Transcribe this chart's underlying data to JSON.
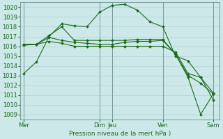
{
  "title": "Pression niveau de la mer( hPa )",
  "bg_color": "#cce8e8",
  "grid_color": "#aacccc",
  "line_color": "#1a6b1a",
  "ylim": [
    1008.5,
    1020.5
  ],
  "yticks": [
    1009,
    1010,
    1011,
    1012,
    1013,
    1014,
    1015,
    1016,
    1017,
    1018,
    1019,
    1020
  ],
  "xtick_labels": [
    "Mer",
    "Dim",
    "Jeu",
    "Ven",
    "Sam"
  ],
  "xtick_positions": [
    0,
    6,
    7,
    11,
    15
  ],
  "vline_positions": [
    0,
    6,
    7,
    11,
    15
  ],
  "xlim": [
    -0.3,
    15.5
  ],
  "series": [
    {
      "x": [
        0,
        1,
        2,
        3,
        4,
        5,
        6,
        7,
        8,
        9,
        10,
        11,
        12,
        13,
        14,
        15
      ],
      "y": [
        1013.2,
        1014.4,
        1017.0,
        1018.3,
        1018.1,
        1018.0,
        1019.5,
        1020.2,
        1020.3,
        1019.7,
        1018.5,
        1018.0,
        1015.0,
        1014.5,
        1012.8,
        1011.2
      ]
    },
    {
      "x": [
        0,
        1,
        2,
        3,
        4,
        5,
        6,
        7,
        8,
        9,
        10,
        11,
        12,
        13,
        14,
        15
      ],
      "y": [
        1016.2,
        1016.2,
        1017.1,
        1018.0,
        1016.6,
        1016.6,
        1016.6,
        1016.6,
        1016.6,
        1016.7,
        1016.7,
        1016.7,
        1015.2,
        1013.0,
        1012.2,
        1011.1
      ]
    },
    {
      "x": [
        0,
        1,
        2,
        3,
        4,
        5,
        6,
        7,
        8,
        9,
        10,
        11,
        12,
        13,
        14,
        15
      ],
      "y": [
        1016.2,
        1016.2,
        1016.9,
        1016.6,
        1016.4,
        1016.3,
        1016.2,
        1016.2,
        1016.4,
        1016.5,
        1016.5,
        1016.6,
        1015.2,
        1012.8,
        1009.0,
        1011.1
      ]
    },
    {
      "x": [
        0,
        1,
        2,
        3,
        4,
        5,
        6,
        7,
        8,
        9,
        10,
        11,
        12,
        13,
        14,
        15
      ],
      "y": [
        1016.1,
        1016.2,
        1016.5,
        1016.3,
        1016.0,
        1016.0,
        1016.0,
        1016.0,
        1016.0,
        1016.0,
        1016.0,
        1016.0,
        1015.4,
        1013.2,
        1012.8,
        1010.5
      ]
    }
  ]
}
